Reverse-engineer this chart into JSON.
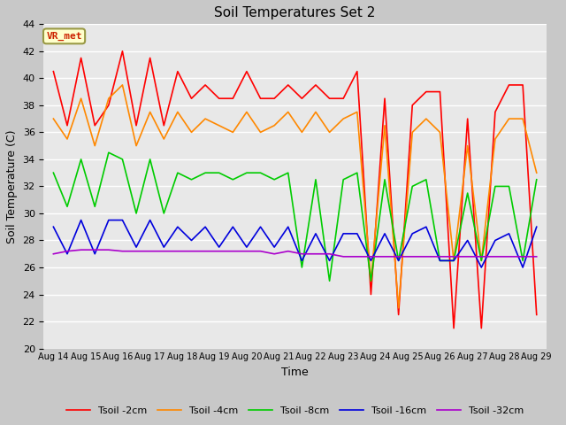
{
  "title": "Soil Temperatures Set 2",
  "xlabel": "Time",
  "ylabel": "Soil Temperature (C)",
  "ylim": [
    20,
    44
  ],
  "yticks": [
    20,
    22,
    24,
    26,
    28,
    30,
    32,
    34,
    36,
    38,
    40,
    42,
    44
  ],
  "x_labels": [
    "Aug 14",
    "Aug 15",
    "Aug 16",
    "Aug 17",
    "Aug 18",
    "Aug 19",
    "Aug 20",
    "Aug 21",
    "Aug 22",
    "Aug 23",
    "Aug 24",
    "Aug 25",
    "Aug 26",
    "Aug 27",
    "Aug 28",
    "Aug 29"
  ],
  "annotation_text": "VR_met",
  "annotation_color": "#cc2200",
  "series": [
    {
      "label": "Tsoil -2cm",
      "color": "#ff0000",
      "y": [
        40.5,
        36.5,
        41.5,
        36.5,
        38.0,
        42.0,
        36.5,
        41.5,
        36.5,
        40.5,
        38.5,
        39.5,
        38.5,
        38.5,
        40.5,
        38.5,
        38.5,
        39.5,
        38.5,
        39.5,
        38.5,
        38.5,
        40.5,
        24.0,
        38.5,
        22.5,
        38.0,
        39.0,
        39.0,
        21.5,
        37.0,
        21.5,
        37.5,
        39.5,
        39.5,
        22.5
      ]
    },
    {
      "label": "Tsoil -4cm",
      "color": "#ff8800",
      "y": [
        37.0,
        35.5,
        38.5,
        35.0,
        38.5,
        39.5,
        35.0,
        37.5,
        35.5,
        37.5,
        36.0,
        37.0,
        36.5,
        36.0,
        37.5,
        36.0,
        36.5,
        37.5,
        36.0,
        37.5,
        36.0,
        37.0,
        37.5,
        25.0,
        36.5,
        23.0,
        36.0,
        37.0,
        36.0,
        26.5,
        35.0,
        26.5,
        35.5,
        37.0,
        37.0,
        33.0
      ]
    },
    {
      "label": "Tsoil -8cm",
      "color": "#00cc00",
      "y": [
        33.0,
        30.5,
        34.0,
        30.5,
        34.5,
        34.0,
        30.0,
        34.0,
        30.0,
        33.0,
        32.5,
        33.0,
        33.0,
        32.5,
        33.0,
        33.0,
        32.5,
        33.0,
        26.0,
        32.5,
        25.0,
        32.5,
        33.0,
        25.0,
        32.5,
        26.5,
        32.0,
        32.5,
        26.5,
        26.5,
        31.5,
        26.5,
        32.0,
        32.0,
        26.5,
        32.5
      ]
    },
    {
      "label": "Tsoil -16cm",
      "color": "#0000dd",
      "y": [
        29.0,
        27.0,
        29.5,
        27.0,
        29.5,
        29.5,
        27.5,
        29.5,
        27.5,
        29.0,
        28.0,
        29.0,
        27.5,
        29.0,
        27.5,
        29.0,
        27.5,
        29.0,
        26.5,
        28.5,
        26.5,
        28.5,
        28.5,
        26.5,
        28.5,
        26.5,
        28.5,
        29.0,
        26.5,
        26.5,
        28.0,
        26.0,
        28.0,
        28.5,
        26.0,
        29.0
      ]
    },
    {
      "label": "Tsoil -32cm",
      "color": "#aa00cc",
      "y": [
        27.0,
        27.2,
        27.3,
        27.3,
        27.3,
        27.2,
        27.2,
        27.2,
        27.2,
        27.2,
        27.2,
        27.2,
        27.2,
        27.2,
        27.2,
        27.2,
        27.0,
        27.2,
        27.0,
        27.0,
        27.0,
        26.8,
        26.8,
        26.8,
        26.8,
        26.8,
        26.8,
        26.8,
        26.8,
        26.8,
        26.8,
        26.8,
        26.8,
        26.8,
        26.8,
        26.8
      ]
    }
  ]
}
